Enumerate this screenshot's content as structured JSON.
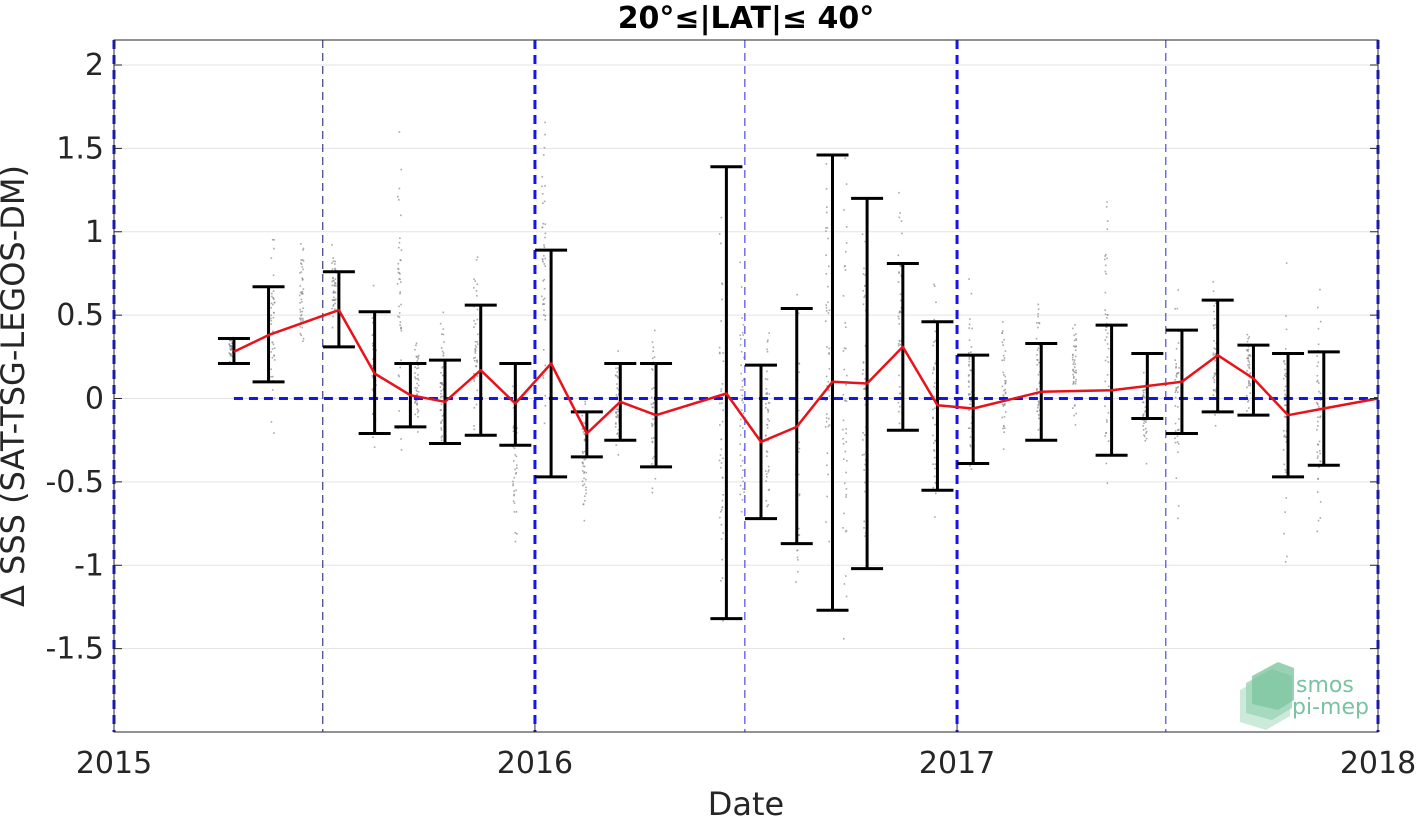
{
  "chart_data": {
    "type": "line",
    "title": "20°≤|LAT|≤ 40°",
    "xlabel": "Date",
    "ylabel": "Δ SSS (SAT-TSG-LEGOS-DM)",
    "xlim": [
      "2015-01-01",
      "2018-01-01"
    ],
    "ylim": [
      -2,
      2.15
    ],
    "x_ticks": [
      {
        "value": "2015-01-01",
        "label": "2015"
      },
      {
        "value": "2016-01-01",
        "label": "2016"
      },
      {
        "value": "2017-01-01",
        "label": "2017"
      },
      {
        "value": "2018-01-01",
        "label": "2018"
      }
    ],
    "y_ticks": [
      {
        "value": 2,
        "label": "2"
      },
      {
        "value": 1.5,
        "label": "1.5"
      },
      {
        "value": 1,
        "label": "1"
      },
      {
        "value": 0.5,
        "label": "0.5"
      },
      {
        "value": 0,
        "label": "0"
      },
      {
        "value": -0.5,
        "label": "-0.5"
      },
      {
        "value": -1,
        "label": "-1"
      },
      {
        "value": -1.5,
        "label": "-1.5"
      }
    ],
    "grid": "horizontal",
    "year_markers": [
      "2015-01-01",
      "2016-01-01",
      "2017-01-01",
      "2018-01-01"
    ],
    "half_year_markers": [
      "2015-07-01",
      "2016-07-01",
      "2017-07-01"
    ],
    "zero_line": {
      "value": 0,
      "from": "2015-04-15",
      "to": "2018-01-01"
    },
    "series": [
      {
        "type": "line",
        "color": "#e8131a",
        "points": [
          {
            "x": "2015-04-15",
            "y": 0.28
          },
          {
            "x": "2015-05-15",
            "y": 0.38
          },
          {
            "x": "2015-07-15",
            "y": 0.53
          },
          {
            "x": "2015-08-15",
            "y": 0.15
          },
          {
            "x": "2015-09-15",
            "y": 0.02
          },
          {
            "x": "2015-10-15",
            "y": -0.02
          },
          {
            "x": "2015-11-15",
            "y": 0.17
          },
          {
            "x": "2015-12-15",
            "y": -0.03
          },
          {
            "x": "2016-01-15",
            "y": 0.21
          },
          {
            "x": "2016-02-15",
            "y": -0.21
          },
          {
            "x": "2016-03-15",
            "y": -0.02
          },
          {
            "x": "2016-04-15",
            "y": -0.1
          },
          {
            "x": "2016-06-15",
            "y": 0.03
          },
          {
            "x": "2016-07-15",
            "y": -0.26
          },
          {
            "x": "2016-08-15",
            "y": -0.17
          },
          {
            "x": "2016-09-15",
            "y": 0.1
          },
          {
            "x": "2016-10-15",
            "y": 0.09
          },
          {
            "x": "2016-11-15",
            "y": 0.31
          },
          {
            "x": "2016-12-15",
            "y": -0.04
          },
          {
            "x": "2017-01-15",
            "y": -0.06
          },
          {
            "x": "2017-03-15",
            "y": 0.04
          },
          {
            "x": "2017-05-15",
            "y": 0.05
          },
          {
            "x": "2017-07-15",
            "y": 0.1
          },
          {
            "x": "2017-08-15",
            "y": 0.26
          },
          {
            "x": "2017-09-15",
            "y": 0.12
          },
          {
            "x": "2017-10-15",
            "y": -0.1
          },
          {
            "x": "2017-11-15",
            "y": -0.06
          },
          {
            "x": "2018-01-01",
            "y": 0.0
          }
        ]
      },
      {
        "type": "errorbar",
        "color": "#000000",
        "bars": [
          {
            "x": "2015-04-15",
            "low": 0.21,
            "high": 0.36
          },
          {
            "x": "2015-05-15",
            "low": 0.1,
            "high": 0.67
          },
          {
            "x": "2015-07-15",
            "low": 0.31,
            "high": 0.76
          },
          {
            "x": "2015-08-15",
            "low": -0.21,
            "high": 0.52
          },
          {
            "x": "2015-09-15",
            "low": -0.17,
            "high": 0.21
          },
          {
            "x": "2015-10-15",
            "low": -0.27,
            "high": 0.23
          },
          {
            "x": "2015-11-15",
            "low": -0.22,
            "high": 0.56
          },
          {
            "x": "2015-12-15",
            "low": -0.28,
            "high": 0.21
          },
          {
            "x": "2016-01-15",
            "low": -0.47,
            "high": 0.89
          },
          {
            "x": "2016-02-15",
            "low": -0.35,
            "high": -0.08
          },
          {
            "x": "2016-03-15",
            "low": -0.25,
            "high": 0.21
          },
          {
            "x": "2016-04-15",
            "low": -0.41,
            "high": 0.21
          },
          {
            "x": "2016-06-15",
            "low": -1.32,
            "high": 1.39
          },
          {
            "x": "2016-07-15",
            "low": -0.72,
            "high": 0.2
          },
          {
            "x": "2016-08-15",
            "low": -0.87,
            "high": 0.54
          },
          {
            "x": "2016-09-15",
            "low": -1.27,
            "high": 1.46
          },
          {
            "x": "2016-10-15",
            "low": -1.02,
            "high": 1.2
          },
          {
            "x": "2016-11-15",
            "low": -0.19,
            "high": 0.81
          },
          {
            "x": "2016-12-15",
            "low": -0.55,
            "high": 0.46
          },
          {
            "x": "2017-01-15",
            "low": -0.39,
            "high": 0.26
          },
          {
            "x": "2017-03-15",
            "low": -0.25,
            "high": 0.33
          },
          {
            "x": "2017-05-15",
            "low": -0.34,
            "high": 0.44
          },
          {
            "x": "2017-06-15",
            "low": -0.12,
            "high": 0.27
          },
          {
            "x": "2017-07-15",
            "low": -0.21,
            "high": 0.41
          },
          {
            "x": "2017-08-15",
            "low": -0.08,
            "high": 0.59
          },
          {
            "x": "2017-09-15",
            "low": -0.1,
            "high": 0.32
          },
          {
            "x": "2017-10-15",
            "low": -0.47,
            "high": 0.27
          },
          {
            "x": "2017-11-15",
            "low": -0.4,
            "high": 0.28
          }
        ]
      },
      {
        "type": "scatter",
        "color": "#8c8c8c",
        "clusters": [
          {
            "x": "2015-04-12",
            "low": 0.2,
            "high": 0.42
          },
          {
            "x": "2015-05-18",
            "low": -0.48,
            "high": 1.25
          },
          {
            "x": "2015-06-12",
            "low": 0.2,
            "high": 1.12
          },
          {
            "x": "2015-07-10",
            "low": 0.35,
            "high": 0.95
          },
          {
            "x": "2015-08-14",
            "low": -0.35,
            "high": 0.82
          },
          {
            "x": "2015-09-05",
            "low": -0.58,
            "high": 1.75
          },
          {
            "x": "2015-09-20",
            "low": -0.25,
            "high": 0.45
          },
          {
            "x": "2015-10-12",
            "low": -0.55,
            "high": 0.65
          },
          {
            "x": "2015-11-10",
            "low": -0.4,
            "high": 1.08
          },
          {
            "x": "2015-12-14",
            "low": -1.1,
            "high": 0.45
          },
          {
            "x": "2016-01-08",
            "low": -0.55,
            "high": 2.1
          },
          {
            "x": "2016-02-12",
            "low": -0.82,
            "high": 0.15
          },
          {
            "x": "2016-03-12",
            "low": -0.52,
            "high": 0.42
          },
          {
            "x": "2016-04-12",
            "low": -1.05,
            "high": 0.65
          },
          {
            "x": "2016-06-10",
            "low": -2.0,
            "high": 1.5
          },
          {
            "x": "2016-06-28",
            "low": -1.2,
            "high": 1.0
          },
          {
            "x": "2016-07-20",
            "low": -1.0,
            "high": 0.65
          },
          {
            "x": "2016-08-15",
            "low": -1.55,
            "high": 1.05
          },
          {
            "x": "2016-09-10",
            "low": -1.5,
            "high": 1.95
          },
          {
            "x": "2016-09-25",
            "low": -2.0,
            "high": 2.12
          },
          {
            "x": "2016-10-12",
            "low": -1.45,
            "high": 1.8
          },
          {
            "x": "2016-11-12",
            "low": -0.3,
            "high": 1.4
          },
          {
            "x": "2016-12-12",
            "low": -1.1,
            "high": 1.05
          },
          {
            "x": "2017-01-12",
            "low": -0.65,
            "high": 0.85
          },
          {
            "x": "2017-02-10",
            "low": -0.5,
            "high": 0.7
          },
          {
            "x": "2017-03-12",
            "low": -0.55,
            "high": 0.85
          },
          {
            "x": "2017-04-12",
            "low": -0.3,
            "high": 0.7
          },
          {
            "x": "2017-05-10",
            "low": -1.05,
            "high": 1.65
          },
          {
            "x": "2017-06-12",
            "low": -0.45,
            "high": 0.35
          },
          {
            "x": "2017-07-10",
            "low": -0.8,
            "high": 0.82
          },
          {
            "x": "2017-08-12",
            "low": -0.3,
            "high": 0.95
          },
          {
            "x": "2017-09-10",
            "low": -0.15,
            "high": 0.5
          },
          {
            "x": "2017-10-12",
            "low": -1.2,
            "high": 0.9
          },
          {
            "x": "2017-11-10",
            "low": -1.05,
            "high": 0.9
          }
        ]
      }
    ]
  },
  "logo": {
    "line1": "smos",
    "line2": "pi-mep"
  }
}
